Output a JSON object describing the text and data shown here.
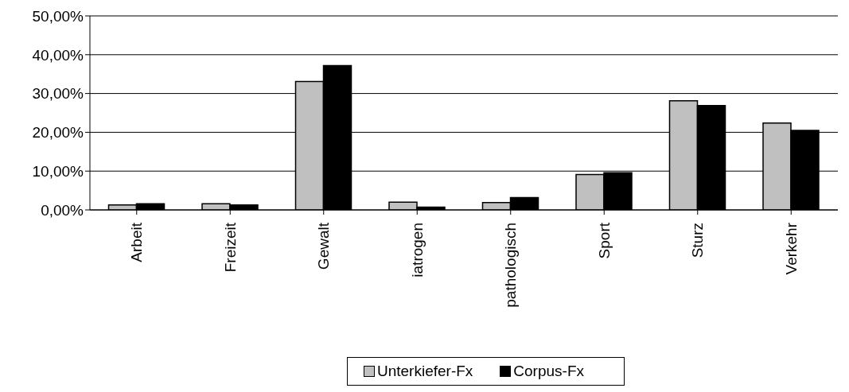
{
  "chart_data": {
    "type": "bar",
    "categories": [
      "Arbeit",
      "Freizeit",
      "Gewalt",
      "iatrogen",
      "pathologisch",
      "Sport",
      "Sturz",
      "Verkehr"
    ],
    "series": [
      {
        "name": "Unterkiefer-Fx",
        "color": "#c0c0c0",
        "values": [
          1.3,
          1.6,
          33.1,
          2.0,
          1.9,
          9.1,
          28.1,
          22.4
        ]
      },
      {
        "name": "Corpus-Fx",
        "color": "#000000",
        "values": [
          1.6,
          1.3,
          37.2,
          0.7,
          3.2,
          9.6,
          26.9,
          20.5
        ]
      }
    ],
    "ylim": [
      0,
      50
    ],
    "yticks": [
      {
        "value": 0,
        "label": "0,00%"
      },
      {
        "value": 10,
        "label": "10,00%"
      },
      {
        "value": 20,
        "label": "20,00%"
      },
      {
        "value": 30,
        "label": "30,00%"
      },
      {
        "value": 40,
        "label": "40,00%"
      },
      {
        "value": 50,
        "label": "50,00%"
      }
    ],
    "grid": "y",
    "legend": "bottom"
  }
}
